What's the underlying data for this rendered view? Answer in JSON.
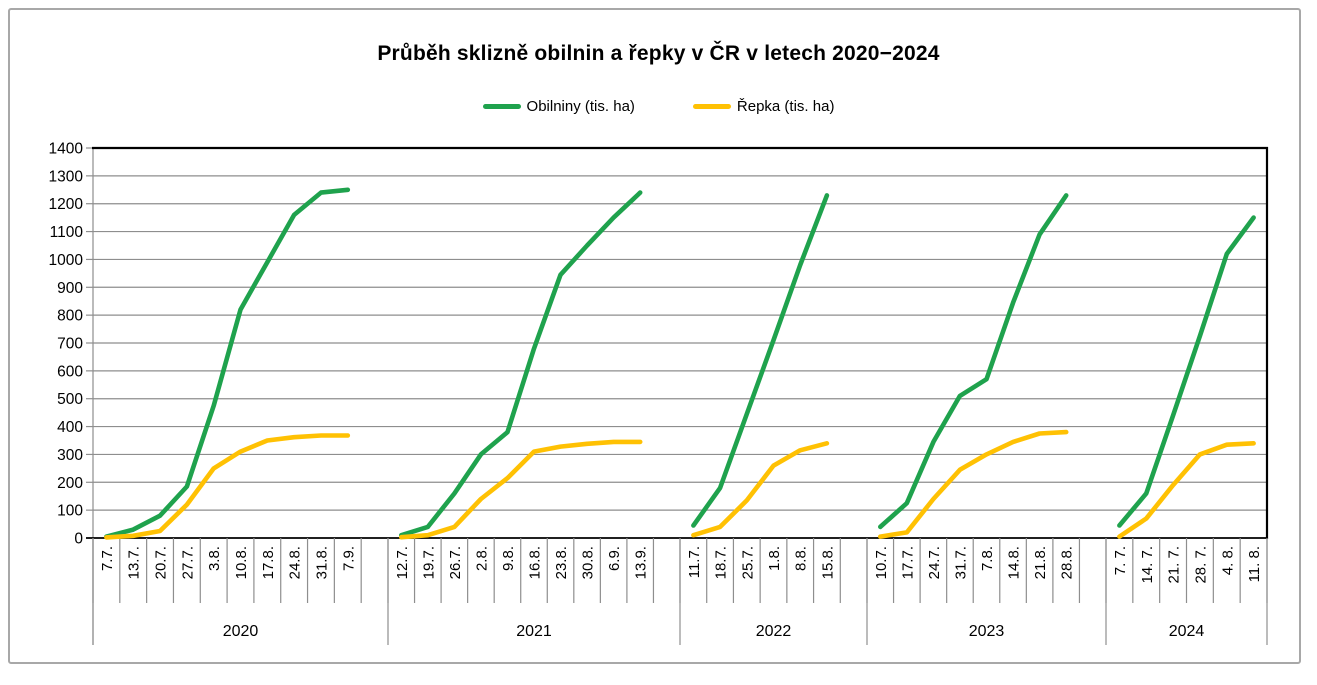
{
  "chart_data": {
    "type": "line",
    "title": "Průběh sklizně obilnin a řepky v ČR v letech 2020−2024",
    "xlabel": "",
    "ylabel": "",
    "ylim": [
      0,
      1400
    ],
    "ytick_step": 100,
    "grid": "horizontal",
    "legend_position": "top",
    "series_meta": [
      {
        "key": "obilniny",
        "name": "Obilniny (tis. ha)",
        "color": "#1fa24d"
      },
      {
        "key": "repka",
        "name": "Řepka (tis. ha)",
        "color": "#ffc103"
      }
    ],
    "groups": [
      {
        "year": "2020",
        "dates": [
          "7.7.",
          "13.7.",
          "20.7.",
          "27.7.",
          "3.8.",
          "10.8.",
          "17.8.",
          "24.8.",
          "31.8.",
          "7.9."
        ],
        "series": {
          "obilniny": [
            5,
            30,
            80,
            185,
            475,
            820,
            990,
            1160,
            1240,
            1250
          ],
          "repka": [
            2,
            8,
            25,
            120,
            250,
            310,
            350,
            362,
            368,
            368
          ]
        }
      },
      {
        "year": "2021",
        "dates": [
          "12.7.",
          "19.7.",
          "26.7.",
          "2.8.",
          "9.8.",
          "16.8.",
          "23.8.",
          "30.8.",
          "6.9.",
          "13.9."
        ],
        "series": {
          "obilniny": [
            10,
            40,
            160,
            300,
            380,
            680,
            945,
            1050,
            1150,
            1240
          ],
          "repka": [
            3,
            10,
            40,
            140,
            215,
            310,
            328,
            338,
            345,
            345
          ]
        }
      },
      {
        "year": "2022",
        "dates": [
          "11.7.",
          "18.7.",
          "25.7.",
          "1.8.",
          "8.8.",
          "15.8."
        ],
        "series": {
          "obilniny": [
            45,
            180,
            445,
            710,
            980,
            1230
          ],
          "repka": [
            10,
            40,
            135,
            260,
            315,
            340
          ]
        }
      },
      {
        "year": "2023",
        "dates": [
          "10.7.",
          "17.7.",
          "24.7.",
          "31.7.",
          "7.8.",
          "14.8.",
          "21.8.",
          "28.8."
        ],
        "series": {
          "obilniny": [
            40,
            125,
            345,
            510,
            570,
            845,
            1090,
            1230
          ],
          "repka": [
            5,
            20,
            140,
            245,
            300,
            345,
            375,
            380
          ]
        }
      },
      {
        "year": "2024",
        "dates": [
          "7. 7.",
          "14. 7.",
          "21. 7.",
          "28. 7.",
          "4. 8.",
          "11. 8."
        ],
        "series": {
          "obilniny": [
            45,
            160,
            440,
            725,
            1020,
            1150
          ],
          "repka": [
            5,
            70,
            190,
            300,
            335,
            340
          ]
        }
      }
    ]
  },
  "style_colors": {
    "grid": "#8e8e8e",
    "axis": "#000000",
    "frame_border": "#a8a8a8",
    "text": "#000000"
  }
}
